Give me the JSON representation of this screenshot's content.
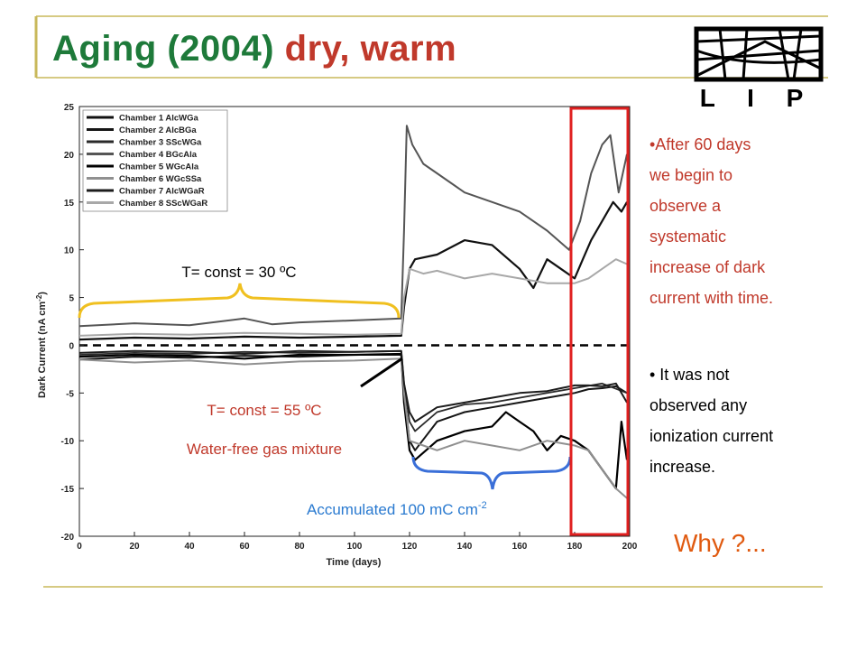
{
  "slide": {
    "title_part1": "Aging (2004) ",
    "title_part2": "dry, warm",
    "logo_text": "L I P",
    "bullet1": "•After 60 days we begin to observe a systematic increase of dark current with time.",
    "bullet2": "• It was not observed any ionization current increase.",
    "why": "Why ?...",
    "annotation_30": "T= const = 30 ºC",
    "annotation_55": "T= const = 55 ºC",
    "annotation_gas": "Water-free gas mixture",
    "annotation_accum": "Accumulated 100 mC cm",
    "annotation_accum_exp": "-2",
    "colors": {
      "title_green": "#1e7a3a",
      "title_red": "#c0392b",
      "brace_yellow": "#f0c020",
      "brace_blue": "#3a6fd8",
      "highlight_red": "#e02020",
      "annotation_red": "#c0392b",
      "annotation_blue": "#2a7ad0"
    }
  },
  "chart_data": {
    "type": "line",
    "xlabel": "Time (days)",
    "ylabel": "Dark Current (nA cm",
    "ylabel_exp": "-2",
    "ylabel_close": ")",
    "xlim": [
      0,
      200
    ],
    "ylim": [
      -20,
      25
    ],
    "xticks": [
      0,
      20,
      40,
      60,
      80,
      100,
      120,
      140,
      160,
      180,
      200
    ],
    "yticks": [
      25,
      20,
      15,
      10,
      5,
      0,
      -5,
      -10,
      -15,
      -20
    ],
    "legend_position": "top-left",
    "series": [
      {
        "name": "Chamber 1 AlcWGa",
        "color": "#111111",
        "width": 2.2,
        "x": [
          0,
          20,
          40,
          60,
          80,
          100,
          117,
          118,
          120,
          122,
          130,
          140,
          150,
          160,
          165,
          170,
          175,
          180,
          183,
          186,
          190,
          194,
          197,
          199
        ],
        "y": [
          0.6,
          0.8,
          0.7,
          0.9,
          0.8,
          0.9,
          1.0,
          4,
          8,
          9,
          9.5,
          11,
          10.5,
          8,
          6,
          9,
          8,
          7,
          9,
          11,
          13,
          15,
          14,
          15
        ]
      },
      {
        "name": "Chamber 2 AlcBGa",
        "color": "#151515",
        "width": 2.0,
        "x": [
          0,
          20,
          40,
          60,
          80,
          100,
          117,
          118,
          120,
          122,
          130,
          140,
          150,
          160,
          170,
          180,
          185,
          190,
          195,
          199
        ],
        "y": [
          -1.5,
          -1.2,
          -1.3,
          -1.1,
          -1.2,
          -1.0,
          -1.0,
          -5,
          -10,
          -11,
          -8,
          -7,
          -6.5,
          -6,
          -5.5,
          -5,
          -4.6,
          -4.5,
          -4.3,
          -5
        ]
      },
      {
        "name": "Chamber 3 SScWGa",
        "color": "#2a2a2a",
        "width": 1.8,
        "x": [
          0,
          20,
          40,
          60,
          80,
          100,
          117,
          118,
          120,
          122,
          130,
          140,
          150,
          160,
          170,
          180,
          190,
          199
        ],
        "y": [
          -1.0,
          -0.8,
          -0.9,
          -0.7,
          -0.8,
          -0.7,
          -0.6,
          -4,
          -8,
          -9,
          -7,
          -6.2,
          -6,
          -5.5,
          -5,
          -4.5,
          -4,
          -5
        ]
      },
      {
        "name": "Chamber 4 BGcAla",
        "color": "#555555",
        "width": 2.0,
        "x": [
          0,
          20,
          40,
          60,
          70,
          80,
          100,
          117,
          118,
          119,
          121,
          125,
          130,
          140,
          150,
          160,
          170,
          178,
          182,
          186,
          190,
          193,
          196,
          199
        ],
        "y": [
          2.0,
          2.3,
          2.1,
          2.8,
          2.2,
          2.4,
          2.6,
          2.8,
          12,
          23,
          21,
          19,
          18,
          16,
          15,
          14,
          12,
          10,
          13,
          18,
          21,
          22,
          16,
          20
        ]
      },
      {
        "name": "Chamber 5 WGcAla",
        "color": "#000000",
        "width": 2.2,
        "x": [
          0,
          20,
          40,
          60,
          80,
          100,
          117,
          118,
          120,
          122,
          130,
          140,
          150,
          155,
          160,
          165,
          170,
          175,
          180,
          185,
          190,
          195,
          197,
          199
        ],
        "y": [
          -1.2,
          -1.0,
          -1.1,
          -1.4,
          -1.0,
          -1.0,
          -0.9,
          -6,
          -11,
          -12,
          -10,
          -9,
          -8.5,
          -7,
          -8,
          -9,
          -11,
          -9.5,
          -10,
          -11,
          -13,
          -15,
          -8,
          -12
        ]
      },
      {
        "name": "Chamber 6 WGcSSa",
        "color": "#909090",
        "width": 2.0,
        "x": [
          0,
          20,
          40,
          60,
          80,
          100,
          117,
          118,
          120,
          125,
          130,
          140,
          150,
          160,
          170,
          180,
          185,
          190,
          195,
          199
        ],
        "y": [
          -1.5,
          -1.8,
          -1.6,
          -2.0,
          -1.7,
          -1.6,
          -1.4,
          -5,
          -10,
          -10.5,
          -11,
          -10,
          -10.5,
          -11,
          -10,
          -10.5,
          -11,
          -13,
          -15,
          -16
        ]
      },
      {
        "name": "Chamber 7 AlcWGaR",
        "color": "#1c1c1c",
        "width": 2.0,
        "x": [
          0,
          20,
          40,
          60,
          80,
          100,
          117,
          118,
          120,
          122,
          130,
          140,
          150,
          160,
          170,
          175,
          180,
          185,
          190,
          195,
          199
        ],
        "y": [
          -0.8,
          -0.6,
          -0.7,
          -0.9,
          -0.6,
          -0.7,
          -0.6,
          -4,
          -7,
          -8,
          -6.5,
          -6,
          -5.5,
          -5,
          -4.8,
          -4.5,
          -4.2,
          -4.2,
          -4.3,
          -4.0,
          -6
        ]
      },
      {
        "name": "Chamber 8 SScWGaR",
        "color": "#a8a8a8",
        "width": 2.0,
        "x": [
          0,
          20,
          40,
          60,
          80,
          100,
          117,
          118,
          120,
          125,
          130,
          140,
          150,
          160,
          170,
          180,
          185,
          190,
          195,
          199
        ],
        "y": [
          1.0,
          1.2,
          1.1,
          1.3,
          1.2,
          1.1,
          1.2,
          5,
          8,
          7.5,
          7.8,
          7,
          7.5,
          7,
          6.5,
          6.5,
          7,
          8,
          9,
          8.5
        ]
      }
    ]
  }
}
